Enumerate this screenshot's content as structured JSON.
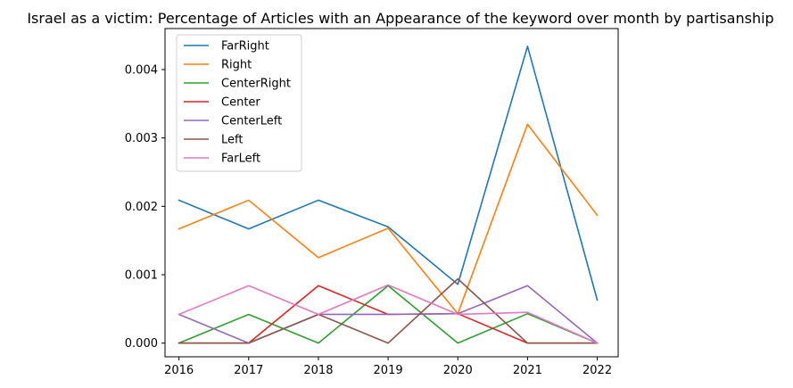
{
  "chart_data": {
    "type": "line",
    "title": "Israel as a victim: Percentage of Articles with an Appearance of the keyword over month by partisanship",
    "xlabel": "",
    "ylabel": "",
    "x": [
      2016,
      2017,
      2018,
      2019,
      2020,
      2021,
      2022
    ],
    "xlim": [
      2015.8,
      2022.3
    ],
    "ylim": [
      -0.0002,
      0.0046
    ],
    "yticks": [
      0.0,
      0.001,
      0.002,
      0.003,
      0.004
    ],
    "ytick_labels": [
      "0.000",
      "0.001",
      "0.002",
      "0.003",
      "0.004"
    ],
    "xtick_labels": [
      "2016",
      "2017",
      "2018",
      "2019",
      "2020",
      "2021",
      "2022"
    ],
    "grid": false,
    "legend_position": "top-left",
    "series": [
      {
        "name": "FarRight",
        "color": "#1f77b4",
        "values": [
          0.00209,
          0.00167,
          0.00209,
          0.0017,
          0.00086,
          0.00434,
          0.00063
        ]
      },
      {
        "name": "Right",
        "color": "#ff7f0e",
        "values": [
          0.00167,
          0.00209,
          0.00125,
          0.00168,
          0.00043,
          0.0032,
          0.00187
        ]
      },
      {
        "name": "CenterRight",
        "color": "#2ca02c",
        "values": [
          0.0,
          0.00042,
          0.0,
          0.00084,
          0.0,
          0.00043,
          0.0
        ]
      },
      {
        "name": "Center",
        "color": "#d62728",
        "values": [
          0.0,
          0.0,
          0.00084,
          0.00042,
          0.00043,
          0.0,
          0.0
        ]
      },
      {
        "name": "CenterLeft",
        "color": "#9467bd",
        "values": [
          0.00042,
          0.0,
          0.00042,
          0.00042,
          0.00043,
          0.00084,
          0.0
        ]
      },
      {
        "name": "Left",
        "color": "#8c564b",
        "values": [
          0.0,
          0.0,
          0.00042,
          0.0,
          0.00094,
          0.0,
          0.0
        ]
      },
      {
        "name": "FarLeft",
        "color": "#e377c2",
        "values": [
          0.00042,
          0.00084,
          0.00042,
          0.00085,
          0.00042,
          0.00045,
          0.0
        ]
      }
    ]
  }
}
